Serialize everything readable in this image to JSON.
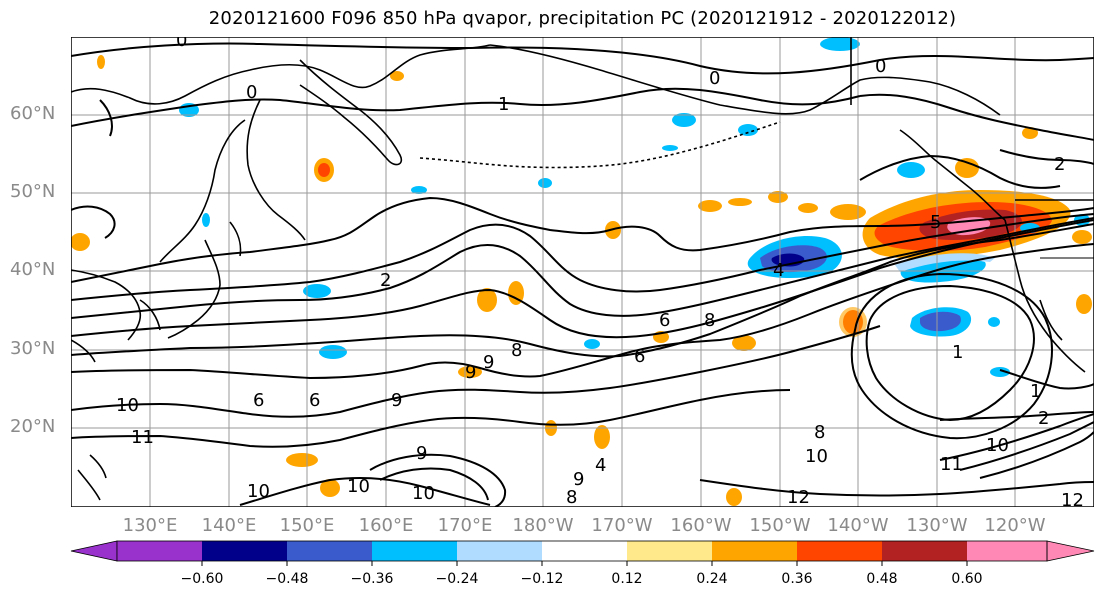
{
  "title": "2020121600 F096 850 hPa qvapor, precipitation PC (2020121912 - 2020122012)",
  "lat_ticks": [
    "60°N",
    "50°N",
    "40°N",
    "30°N",
    "20°N"
  ],
  "lon_ticks": [
    "130°E",
    "140°E",
    "150°E",
    "160°E",
    "170°E",
    "180°W",
    "170°W",
    "160°W",
    "150°W",
    "140°W",
    "130°W",
    "120°W"
  ],
  "colorbar": {
    "labels": [
      "−0.60",
      "−0.48",
      "−0.36",
      "−0.24",
      "−0.12",
      "0.12",
      "0.24",
      "0.36",
      "0.48",
      "0.60"
    ],
    "colors": [
      "#9932cc",
      "#00008b",
      "#3a5bcc",
      "#00bfff",
      "#afdcff",
      "#ffffff",
      "#ffe98a",
      "#ffa500",
      "#ff4500",
      "#b22222",
      "#ff88b4"
    ]
  },
  "contour_labels": [
    "0",
    "0",
    "0",
    "1",
    "2",
    "2",
    "4",
    "6",
    "6",
    "8",
    "8",
    "9",
    "9",
    "6",
    "6",
    "9",
    "9",
    "10",
    "10",
    "11",
    "10",
    "10",
    "8",
    "8",
    "9",
    "10",
    "12",
    "12",
    "11",
    "10",
    "2",
    "1",
    "1",
    "0",
    "4",
    "5"
  ]
}
